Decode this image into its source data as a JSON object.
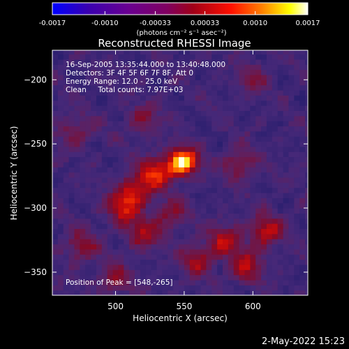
{
  "chart_data": {
    "type": "heatmap",
    "title": "Reconstructed RHESSI Image",
    "xlabel": "Heliocentric X (arcsec)",
    "ylabel": "Heliocentric Y (arcsec)",
    "xlim": [
      454,
      640
    ],
    "ylim": [
      -368,
      -177
    ],
    "x_ticks": [
      500,
      550,
      600
    ],
    "y_ticks": [
      -200,
      -250,
      -300,
      -350
    ],
    "colorbar": {
      "range": [
        -0.0017,
        0.0017
      ],
      "tick_values": [
        -0.0017,
        -0.001,
        -0.00033,
        0.00033,
        0.001,
        0.0017
      ],
      "tick_labels": [
        "-0.0017",
        "-0.0010",
        "-0.00033",
        "0.00033",
        "0.0010",
        "0.0017"
      ],
      "colors": [
        "#0000ff",
        "#4b0082",
        "#800080",
        "#9a0020",
        "#ff0000",
        "#ff8000",
        "#ffff00",
        "#ffffff"
      ]
    },
    "units_text": "(photons cm⁻² s⁻¹ asec⁻²)",
    "annotations": [
      "16-Sep-2005 13:35:44.000 to 13:40:48.000",
      "Detectors: 3F 4F 5F 6F 7F 8F, Att 0",
      "Energy Range: 12.0 - 25.0 keV",
      "Clean     Total counts: 7.97E+03"
    ],
    "peak_label": "Position of Peak = [548,-265]",
    "peak_position": [
      548,
      -265
    ],
    "sources": [
      {
        "x": 549,
        "y": -264,
        "amp": 1.0
      },
      {
        "x": 530,
        "y": -272,
        "amp": 0.55
      },
      {
        "x": 515,
        "y": -285,
        "amp": 0.5
      },
      {
        "x": 505,
        "y": -300,
        "amp": 0.5
      },
      {
        "x": 520,
        "y": -320,
        "amp": 0.4
      },
      {
        "x": 580,
        "y": -325,
        "amp": 0.45
      },
      {
        "x": 610,
        "y": -318,
        "amp": 0.5
      },
      {
        "x": 595,
        "y": -345,
        "amp": 0.45
      },
      {
        "x": 560,
        "y": -340,
        "amp": 0.4
      },
      {
        "x": 540,
        "y": -305,
        "amp": 0.35
      },
      {
        "x": 475,
        "y": -330,
        "amp": 0.35
      },
      {
        "x": 500,
        "y": -355,
        "amp": 0.35
      },
      {
        "x": 590,
        "y": -265,
        "amp": 0.35
      },
      {
        "x": 470,
        "y": -240,
        "amp": 0.3
      },
      {
        "x": 520,
        "y": -230,
        "amp": 0.3
      },
      {
        "x": 600,
        "y": -200,
        "amp": 0.25
      }
    ]
  },
  "footer": {
    "date": "2-May-2022 15:23"
  }
}
